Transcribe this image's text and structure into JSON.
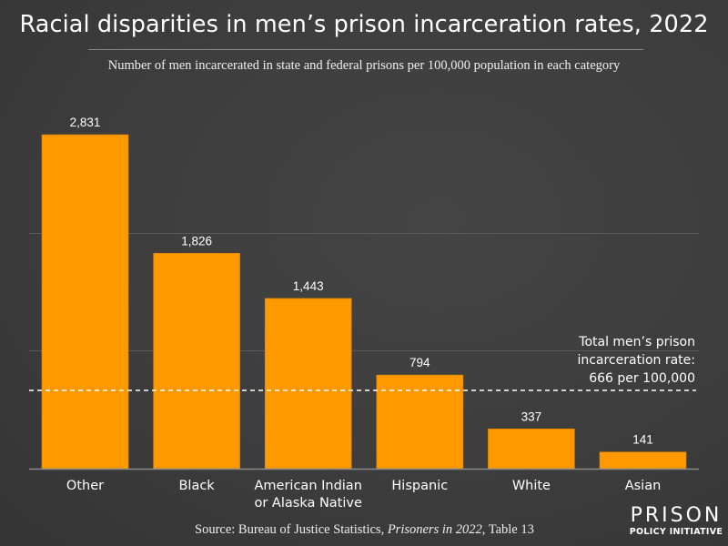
{
  "chart_data": {
    "type": "bar",
    "title": "Racial disparities in men’s prison incarceration rates, 2022",
    "subtitle": "Number of men incarcerated in state and federal prisons per 100,000 population in each category",
    "xlabel": "",
    "ylabel": "",
    "categories": [
      "Other",
      "Black",
      "American Indian\nor Alaska Native",
      "Hispanic",
      "White",
      "Asian"
    ],
    "values": [
      2831,
      1826,
      1443,
      794,
      337,
      141
    ],
    "value_labels": [
      "2,831",
      "1,826",
      "1,443",
      "794",
      "337",
      "141"
    ],
    "ylim": [
      0,
      2831
    ],
    "gridlines": [
      1000,
      2000
    ],
    "grid": true,
    "y_tick_labels_visible": false,
    "reference_line": {
      "value": 666,
      "style": "dashed",
      "label_lines": [
        "Total men’s prison",
        "incarceration rate:",
        "666 per 100,000"
      ]
    },
    "bar_color": "#ff9900",
    "legend": "none"
  },
  "source": {
    "prefix": "Source: Bureau of Justice Statistics, ",
    "italic": "Prisoners in 2022",
    "suffix": ", Table 13"
  },
  "logo": {
    "top": "PRISON",
    "bottom": "POLICY INITIATIVE"
  },
  "colors": {
    "background": "#3f3f3f",
    "bar": "#ff9900",
    "text": "#ffffff",
    "gridline": "#5a5a5a",
    "axis": "#8a8a8a"
  }
}
